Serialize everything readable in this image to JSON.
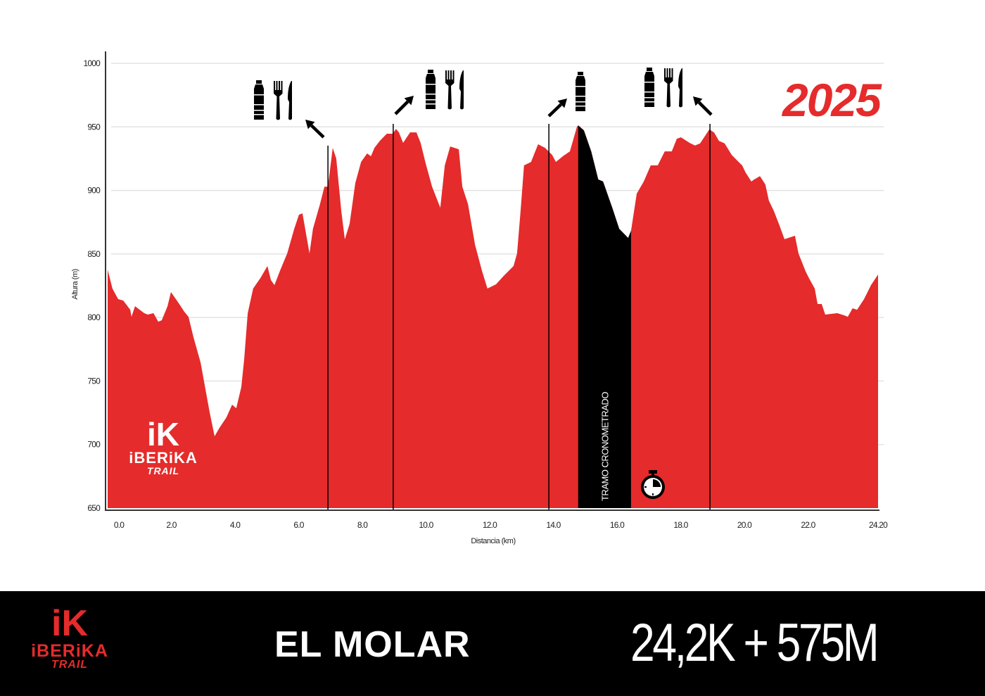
{
  "header": {
    "year": "2025"
  },
  "footer": {
    "race_name": "EL MOLAR",
    "race_stats": "24,2K + 575M",
    "logo": {
      "initial": "iK",
      "word": "iBERiKA",
      "sub": "TRAIL"
    }
  },
  "chart_logo": {
    "initial": "iK",
    "word": "iBERiKA",
    "sub": "TRAIL"
  },
  "colors": {
    "profile": "#e52b2b",
    "timed_section": "#000000",
    "footer_bg": "#000000",
    "year": "#e52b2b"
  },
  "chart_data": {
    "type": "area",
    "title": "",
    "xlabel": "Distancia (km)",
    "ylabel": "Altura (m)",
    "xlim": [
      0,
      24.2
    ],
    "ylim": [
      650,
      1000
    ],
    "grid": "horizontal",
    "x_ticks": [
      "0.0",
      "2.0",
      "4.0",
      "6.0",
      "8.0",
      "10.0",
      "12.0",
      "14.0",
      "16.0",
      "18.0",
      "20.0",
      "22.0",
      "24.20"
    ],
    "x_tick_values": [
      0,
      2,
      4,
      6,
      8,
      10,
      12,
      14,
      16,
      18,
      20,
      22,
      24.2
    ],
    "y_ticks": [
      "1000",
      "950",
      "900",
      "850",
      "800",
      "750",
      "700",
      "650"
    ],
    "y_tick_values": [
      1000,
      950,
      900,
      850,
      800,
      750,
      700,
      650
    ],
    "profile": [
      [
        0,
        837.7
      ],
      [
        0.15,
        822.8
      ],
      [
        0.33,
        814.5
      ],
      [
        0.49,
        813.3
      ],
      [
        0.71,
        806.1
      ],
      [
        0.75,
        800.6
      ],
      [
        0.86,
        808.9
      ],
      [
        1.15,
        803.4
      ],
      [
        1.26,
        802.3
      ],
      [
        1.44,
        803.4
      ],
      [
        1.59,
        796.7
      ],
      [
        1.7,
        797.8
      ],
      [
        1.88,
        808.9
      ],
      [
        1.99,
        820
      ],
      [
        2.25,
        810.6
      ],
      [
        2.41,
        804.5
      ],
      [
        2.54,
        800.6
      ],
      [
        2.7,
        784
      ],
      [
        2.92,
        764.6
      ],
      [
        3.2,
        725.9
      ],
      [
        3.36,
        706.5
      ],
      [
        3.51,
        713.1
      ],
      [
        3.73,
        721.4
      ],
      [
        3.91,
        731.4
      ],
      [
        4.04,
        728.6
      ],
      [
        4.2,
        745.3
      ],
      [
        4.29,
        767.4
      ],
      [
        4.4,
        803.4
      ],
      [
        4.57,
        822.8
      ],
      [
        4.8,
        831.1
      ],
      [
        5.02,
        840.5
      ],
      [
        5.13,
        829.4
      ],
      [
        5.24,
        825.5
      ],
      [
        5.41,
        836.6
      ],
      [
        5.64,
        850.4
      ],
      [
        5.86,
        869.8
      ],
      [
        6.01,
        880.9
      ],
      [
        6.12,
        882
      ],
      [
        6.34,
        850.4
      ],
      [
        6.45,
        869.8
      ],
      [
        6.67,
        889.2
      ],
      [
        6.81,
        903
      ],
      [
        6.92,
        903
      ],
      [
        7.07,
        933.5
      ],
      [
        7.18,
        925.2
      ],
      [
        7.34,
        883.7
      ],
      [
        7.45,
        861.5
      ],
      [
        7.6,
        873.7
      ],
      [
        7.78,
        905.8
      ],
      [
        7.96,
        922.4
      ],
      [
        8.15,
        929.1
      ],
      [
        8.27,
        926.9
      ],
      [
        8.38,
        933.5
      ],
      [
        8.55,
        939
      ],
      [
        8.77,
        944.6
      ],
      [
        8.95,
        944.6
      ],
      [
        9.06,
        948.4
      ],
      [
        9.15,
        945.7
      ],
      [
        9.28,
        937.4
      ],
      [
        9.5,
        945.7
      ],
      [
        9.7,
        945.7
      ],
      [
        9.83,
        937.4
      ],
      [
        9.99,
        921.3
      ],
      [
        10.19,
        903
      ],
      [
        10.45,
        886.4
      ],
      [
        10.59,
        919.7
      ],
      [
        10.76,
        934.6
      ],
      [
        11.03,
        932.4
      ],
      [
        11.14,
        903
      ],
      [
        11.32,
        889.2
      ],
      [
        11.54,
        857.1
      ],
      [
        11.76,
        836.6
      ],
      [
        11.93,
        822.8
      ],
      [
        12.2,
        826.1
      ],
      [
        12.42,
        832.2
      ],
      [
        12.75,
        840.5
      ],
      [
        12.86,
        850.4
      ],
      [
        12.97,
        883.7
      ],
      [
        13.08,
        919.7
      ],
      [
        13.3,
        922.4
      ],
      [
        13.52,
        936.3
      ],
      [
        13.74,
        933.5
      ],
      [
        13.96,
        928
      ],
      [
        14.08,
        922.4
      ],
      [
        14.3,
        926.9
      ],
      [
        14.52,
        930.7
      ],
      [
        14.74,
        950.1
      ],
      [
        14.78,
        951.2
      ],
      [
        14.96,
        947.3
      ],
      [
        15.19,
        930.7
      ],
      [
        15.41,
        908.6
      ],
      [
        15.56,
        907
      ],
      [
        15.85,
        886.4
      ],
      [
        16.07,
        869.8
      ],
      [
        16.35,
        862.6
      ],
      [
        16.44,
        868.2
      ],
      [
        16.62,
        897.5
      ],
      [
        16.84,
        907
      ],
      [
        17.06,
        919.7
      ],
      [
        17.28,
        919.7
      ],
      [
        17.5,
        930.7
      ],
      [
        17.72,
        930.7
      ],
      [
        17.88,
        940.7
      ],
      [
        18.01,
        941.8
      ],
      [
        18.28,
        937.4
      ],
      [
        18.45,
        935.3
      ],
      [
        18.61,
        937
      ],
      [
        18.9,
        948
      ],
      [
        19.05,
        945.6
      ],
      [
        19.2,
        939
      ],
      [
        19.38,
        937
      ],
      [
        19.6,
        928
      ],
      [
        19.82,
        922.4
      ],
      [
        19.93,
        919.7
      ],
      [
        20.04,
        914
      ],
      [
        20.22,
        907
      ],
      [
        20.31,
        908.6
      ],
      [
        20.49,
        911.3
      ],
      [
        20.66,
        904.7
      ],
      [
        20.77,
        892
      ],
      [
        20.93,
        883.7
      ],
      [
        21.1,
        872.7
      ],
      [
        21.26,
        861.6
      ],
      [
        21.59,
        864.3
      ],
      [
        21.7,
        850.4
      ],
      [
        21.92,
        836.6
      ],
      [
        22.03,
        831
      ],
      [
        22.21,
        822.8
      ],
      [
        22.3,
        810.6
      ],
      [
        22.43,
        810.6
      ],
      [
        22.54,
        802.3
      ],
      [
        22.92,
        803.4
      ],
      [
        23.14,
        801.7
      ],
      [
        23.25,
        800.6
      ],
      [
        23.4,
        807.3
      ],
      [
        23.54,
        806
      ],
      [
        23.76,
        814.5
      ],
      [
        23.98,
        825.5
      ],
      [
        24.2,
        833.8
      ]
    ],
    "timed_section": {
      "label": "TRAMO CRONOMETRADO",
      "from_km": 14.78,
      "to_km": 16.44,
      "icon": "stopwatch-icon"
    },
    "aid_stations": [
      {
        "km": 6.92,
        "services": [
          "water",
          "food"
        ],
        "arrow": "up-left"
      },
      {
        "km": 8.97,
        "services": [
          "water",
          "food"
        ],
        "arrow": "up-right"
      },
      {
        "km": 13.86,
        "services": [
          "water"
        ],
        "arrow": "up-right"
      },
      {
        "km": 18.92,
        "services": [
          "water",
          "food"
        ],
        "arrow": "up-left"
      }
    ]
  }
}
